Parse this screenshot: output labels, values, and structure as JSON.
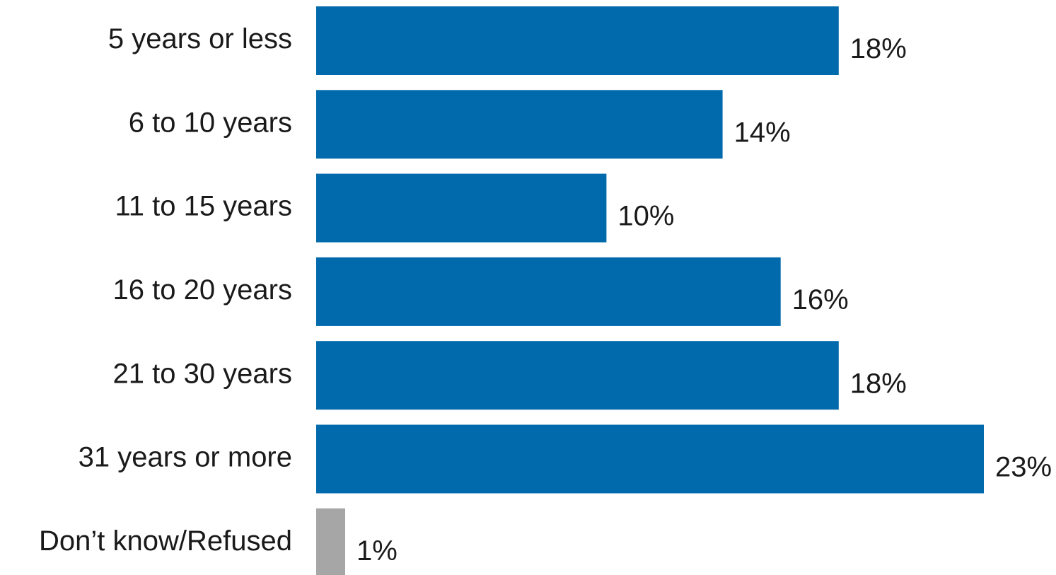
{
  "chart_data": {
    "type": "bar",
    "orientation": "horizontal",
    "categories": [
      "5 years or less",
      "6 to 10 years",
      "11 to 15 years",
      "16 to 20 years",
      "21 to 30 years",
      "31 years or more",
      "Don’t know/Refused"
    ],
    "values": [
      18,
      14,
      10,
      16,
      18,
      23,
      1
    ],
    "value_labels": [
      "18%",
      "14%",
      "10%",
      "16%",
      "18%",
      "23%",
      "1%"
    ],
    "bar_colors": [
      "#006AAD",
      "#006AAD",
      "#006AAD",
      "#006AAD",
      "#006AAD",
      "#006AAD",
      "#A6A6A6"
    ],
    "xlim": [
      0,
      23
    ],
    "grid": false,
    "legend": "none",
    "title": "",
    "xlabel": "",
    "ylabel": ""
  }
}
